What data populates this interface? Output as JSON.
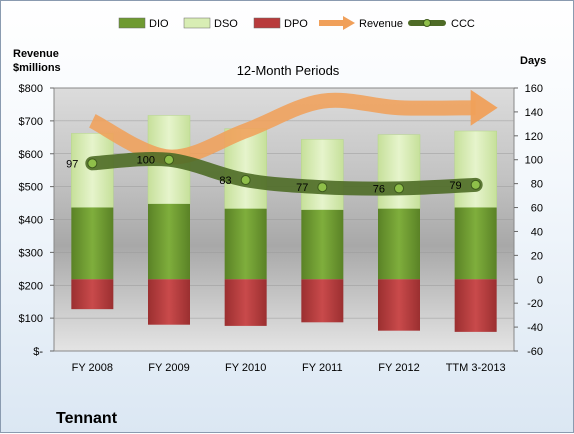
{
  "chart_data": {
    "type": "bar",
    "title": "12-Month Periods",
    "company": "Tennant",
    "left_axis_title": [
      "Revenue",
      "$millions"
    ],
    "right_axis_title": "Days",
    "categories": [
      "FY 2008",
      "FY 2009",
      "FY 2010",
      "FY 2011",
      "FY 2012",
      "TTM 3-2013"
    ],
    "left_axis": {
      "min": 0,
      "max": 800,
      "step": 100,
      "tick_labels": [
        "$-",
        "$100",
        "$200",
        "$300",
        "$400",
        "$500",
        "$600",
        "$700",
        "$800"
      ]
    },
    "right_axis": {
      "min": -60,
      "max": 160,
      "step": 20,
      "tick_labels": [
        "-60",
        "-40",
        "-20",
        "0",
        "20",
        "40",
        "60",
        "80",
        "100",
        "120",
        "140",
        "160"
      ]
    },
    "grid": true,
    "legend_position": "top",
    "series": [
      {
        "name": "DIO",
        "axis": "right",
        "kind": "stacked-bar",
        "color": "#6f9a31",
        "values": [
          60,
          63,
          59,
          58,
          59,
          60
        ]
      },
      {
        "name": "DSO",
        "axis": "right",
        "kind": "stacked-bar",
        "color": "#d8edb4",
        "values": [
          62,
          74,
          67,
          59,
          62,
          64
        ]
      },
      {
        "name": "DPO",
        "axis": "right",
        "kind": "negative-bar",
        "color": "#b83b3c",
        "values": [
          -25,
          -38,
          -39,
          -36,
          -43,
          -44
        ]
      },
      {
        "name": "Revenue",
        "axis": "left",
        "kind": "arrow-line",
        "color": "#f0a05a",
        "values": [
          700,
          590,
          670,
          760,
          740,
          740
        ]
      },
      {
        "name": "CCC",
        "axis": "right",
        "kind": "line",
        "color": "#4e6b26",
        "values": [
          97,
          100,
          83,
          77,
          76,
          79
        ],
        "labels": [
          "97",
          "100",
          "83",
          "77",
          "76",
          "79"
        ]
      }
    ]
  }
}
